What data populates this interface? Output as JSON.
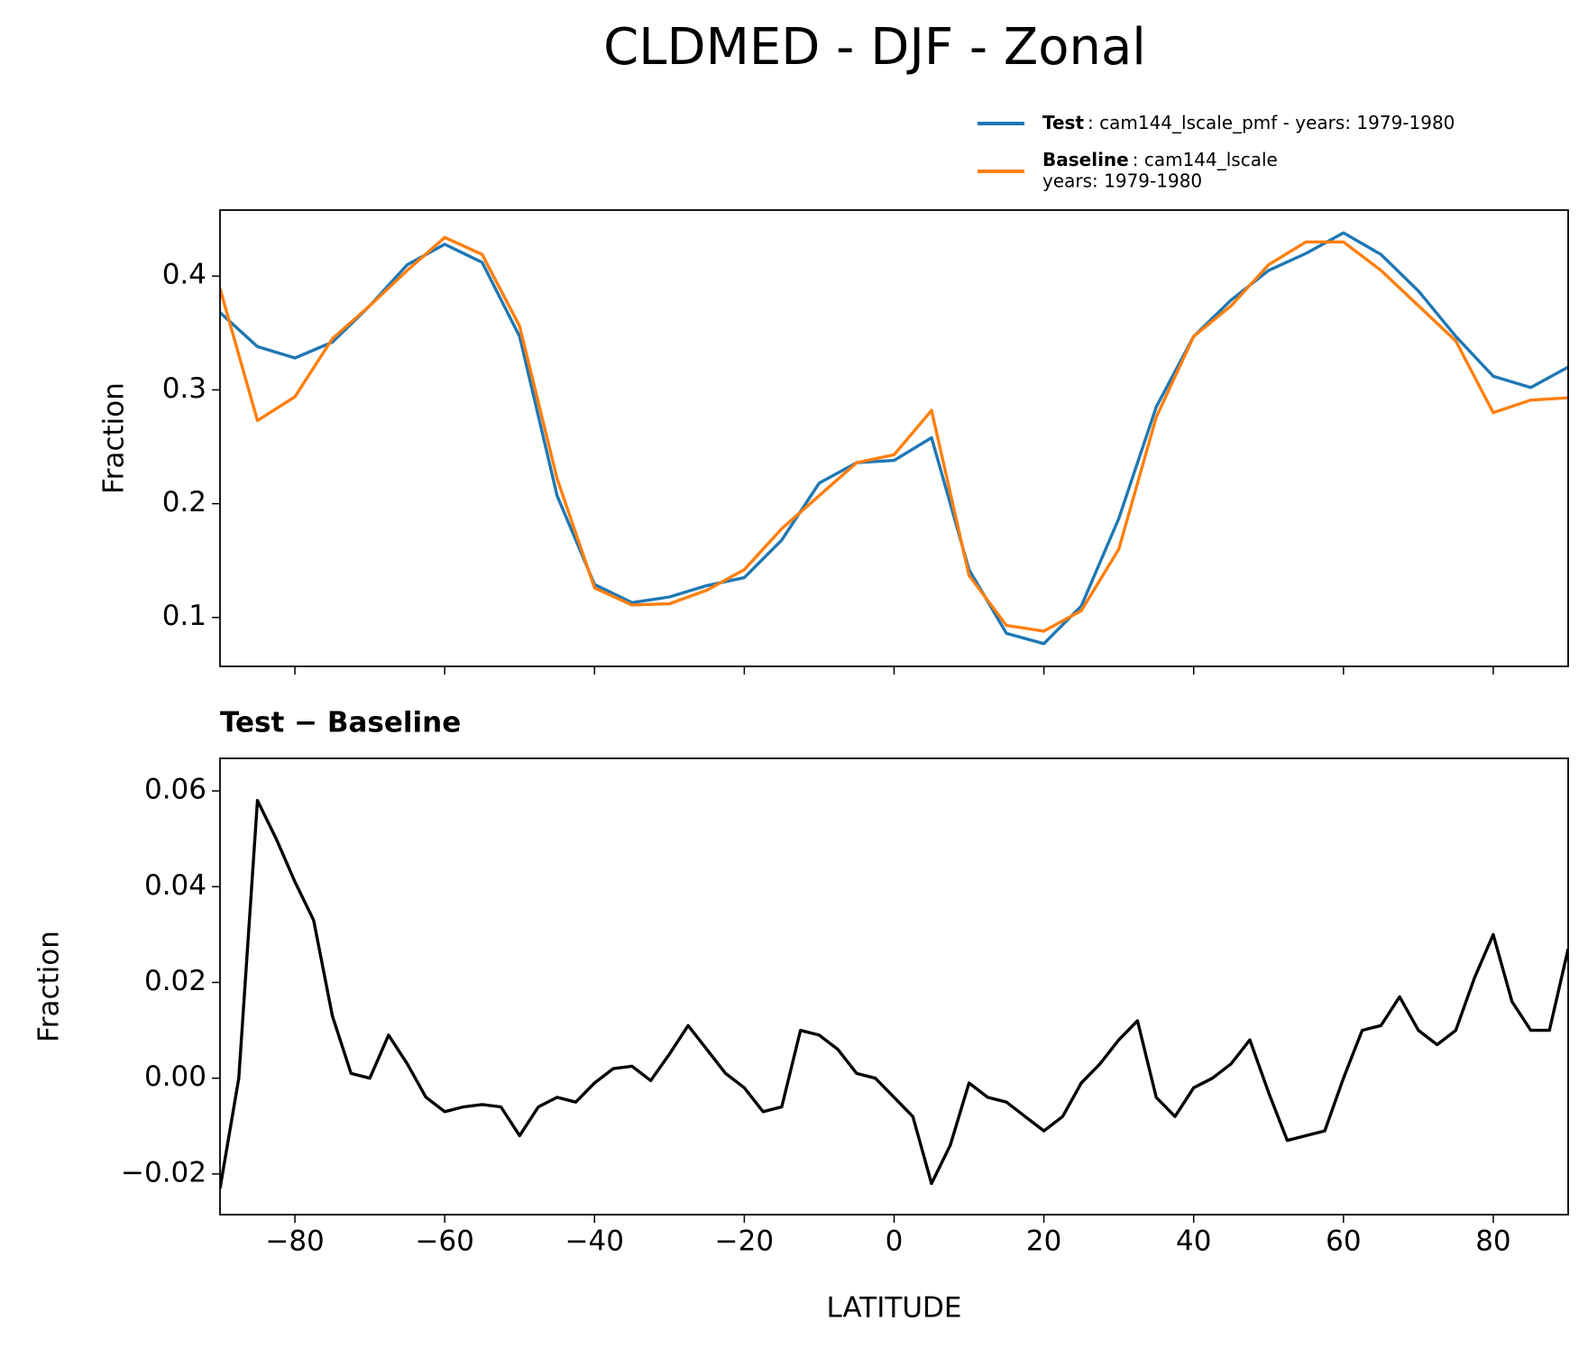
{
  "title": "CLDMED - DJF - Zonal",
  "chart_data": [
    {
      "type": "line",
      "ylabel": "Fraction",
      "x": [
        -90,
        -85,
        -80,
        -75,
        -70,
        -65,
        -60,
        -55,
        -50,
        -45,
        -40,
        -35,
        -30,
        -25,
        -20,
        -15,
        -10,
        -5,
        0,
        5,
        10,
        15,
        20,
        25,
        30,
        35,
        40,
        45,
        50,
        55,
        60,
        65,
        70,
        75,
        80,
        85,
        90
      ],
      "series": [
        {
          "name": "Test",
          "legend_text": [
            ": cam144_lscale_pmf - years: 1979-1980"
          ],
          "color": "#1f77b4",
          "values": [
            0.368,
            0.338,
            0.328,
            0.342,
            0.374,
            0.41,
            0.428,
            0.412,
            0.347,
            0.207,
            0.129,
            0.113,
            0.118,
            0.128,
            0.135,
            0.168,
            0.218,
            0.236,
            0.238,
            0.258,
            0.142,
            0.086,
            0.077,
            0.11,
            0.187,
            0.285,
            0.347,
            0.379,
            0.405,
            0.42,
            0.438,
            0.419,
            0.387,
            0.347,
            0.312,
            0.302,
            0.32
          ]
        },
        {
          "name": "Baseline",
          "legend_text": [
            ": cam144_lscale",
            "years: 1979-1980"
          ],
          "color": "#ff7f0e",
          "values": [
            0.389,
            0.273,
            0.294,
            0.345,
            0.374,
            0.405,
            0.434,
            0.419,
            0.356,
            0.222,
            0.126,
            0.111,
            0.112,
            0.124,
            0.142,
            0.178,
            0.207,
            0.236,
            0.243,
            0.282,
            0.137,
            0.093,
            0.088,
            0.106,
            0.16,
            0.276,
            0.347,
            0.374,
            0.41,
            0.43,
            0.43,
            0.405,
            0.374,
            0.343,
            0.28,
            0.291,
            0.293
          ]
        }
      ],
      "xlim": [
        -90,
        90
      ],
      "xticks": [
        -80,
        -60,
        -40,
        -20,
        0,
        20,
        40,
        60,
        80
      ],
      "ylim": [
        0.057,
        0.458
      ],
      "yticks": [
        0.1,
        0.2,
        0.3,
        0.4
      ]
    },
    {
      "type": "line",
      "title": "Test − Baseline",
      "xlabel": "LATITUDE",
      "ylabel": "Fraction",
      "x": [
        -90,
        -87.5,
        -85,
        -82.5,
        -80,
        -77.5,
        -75,
        -72.5,
        -70,
        -67.5,
        -65,
        -62.5,
        -60,
        -57.5,
        -55,
        -52.5,
        -50,
        -47.5,
        -45,
        -42.5,
        -40,
        -37.5,
        -35,
        -32.5,
        -30,
        -27.5,
        -25,
        -22.5,
        -20,
        -17.5,
        -15,
        -12.5,
        -10,
        -7.5,
        -5,
        -2.5,
        0,
        2.5,
        5,
        7.5,
        10,
        12.5,
        15,
        17.5,
        20,
        22.5,
        25,
        27.5,
        30,
        32.5,
        35,
        37.5,
        40,
        42.5,
        45,
        47.5,
        50,
        52.5,
        55,
        57.5,
        60,
        62.5,
        65,
        67.5,
        70,
        72.5,
        75,
        77.5,
        80,
        82.5,
        85,
        87.5,
        90
      ],
      "series": [
        {
          "name": "Test − Baseline",
          "color": "#000000",
          "values": [
            -0.023,
            0.0,
            0.058,
            0.05,
            0.041,
            0.033,
            0.013,
            0.001,
            0.0,
            0.009,
            0.003,
            -0.004,
            -0.007,
            -0.006,
            -0.0055,
            -0.006,
            -0.012,
            -0.006,
            -0.004,
            -0.005,
            -0.001,
            0.002,
            0.0025,
            -0.0005,
            0.005,
            0.011,
            0.006,
            0.001,
            -0.002,
            -0.007,
            -0.006,
            0.01,
            0.009,
            0.006,
            0.001,
            0.0,
            -0.004,
            -0.008,
            -0.022,
            -0.014,
            -0.001,
            -0.004,
            -0.005,
            -0.008,
            -0.011,
            -0.008,
            -0.001,
            0.003,
            0.008,
            0.012,
            -0.004,
            -0.008,
            -0.002,
            0.0,
            0.003,
            0.008,
            -0.003,
            -0.013,
            -0.012,
            -0.011,
            0.0,
            0.01,
            0.011,
            0.017,
            0.01,
            0.007,
            0.01,
            0.021,
            0.03,
            0.016,
            0.01,
            0.01,
            0.027
          ]
        }
      ],
      "xlim": [
        -90,
        90
      ],
      "xticks": [
        {
          "value": -80,
          "label": "−80"
        },
        {
          "value": -60,
          "label": "−60"
        },
        {
          "value": -40,
          "label": "−40"
        },
        {
          "value": -20,
          "label": "−20"
        },
        0,
        20,
        40,
        60,
        80
      ],
      "ylim": [
        -0.0285,
        0.0668
      ],
      "yticks": [
        {
          "value": -0.02,
          "label": "−0.02"
        },
        {
          "value": 0,
          "label": "0.00"
        },
        {
          "value": 0.02,
          "label": "0.02"
        },
        {
          "value": 0.04,
          "label": "0.04"
        },
        0.06
      ]
    }
  ]
}
